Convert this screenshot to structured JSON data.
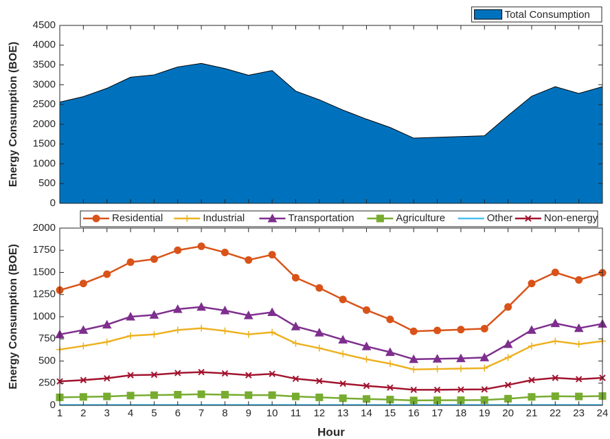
{
  "chart_data": [
    {
      "type": "area",
      "ylabel": "Energy Consumption (BOE)",
      "x": [
        1,
        2,
        3,
        4,
        5,
        6,
        7,
        8,
        9,
        10,
        11,
        12,
        13,
        14,
        15,
        16,
        17,
        18,
        19,
        20,
        21,
        22,
        23,
        24
      ],
      "series": [
        {
          "name": "Total Consumption",
          "color": "#0072BD",
          "values": [
            2560,
            2700,
            2910,
            3190,
            3250,
            3450,
            3540,
            3410,
            3240,
            3360,
            2840,
            2620,
            2360,
            2130,
            1920,
            1650,
            1670,
            1690,
            1710,
            2220,
            2710,
            2950,
            2780,
            2950
          ]
        }
      ],
      "xlim": [
        1,
        24
      ],
      "xticks": [
        1,
        2,
        3,
        4,
        5,
        6,
        7,
        8,
        9,
        10,
        11,
        12,
        13,
        14,
        15,
        16,
        17,
        18,
        19,
        20,
        21,
        22,
        23,
        24
      ],
      "ylim": [
        0,
        4500
      ],
      "yticks": [
        0,
        500,
        1000,
        1500,
        2000,
        2500,
        3000,
        3500,
        4000,
        4500
      ],
      "legend": "northeast"
    },
    {
      "type": "line",
      "ylabel": "Energy Consumption (BOE)",
      "xlabel": "Hour",
      "x": [
        1,
        2,
        3,
        4,
        5,
        6,
        7,
        8,
        9,
        10,
        11,
        12,
        13,
        14,
        15,
        16,
        17,
        18,
        19,
        20,
        21,
        22,
        23,
        24
      ],
      "series": [
        {
          "name": "Residential",
          "color": "#D95319",
          "marker": "circle",
          "values": [
            1300,
            1375,
            1480,
            1615,
            1650,
            1750,
            1795,
            1725,
            1640,
            1700,
            1440,
            1325,
            1195,
            1075,
            970,
            835,
            845,
            855,
            865,
            1110,
            1375,
            1500,
            1415,
            1495
          ]
        },
        {
          "name": "Industrial",
          "color": "#EDB120",
          "marker": "plus",
          "values": [
            630,
            670,
            715,
            785,
            800,
            850,
            870,
            840,
            800,
            825,
            700,
            645,
            580,
            520,
            470,
            405,
            410,
            415,
            420,
            540,
            670,
            725,
            690,
            725
          ]
        },
        {
          "name": "Transportation",
          "color": "#7E2F8E",
          "marker": "triangle",
          "values": [
            800,
            850,
            910,
            1000,
            1020,
            1085,
            1110,
            1070,
            1015,
            1050,
            890,
            820,
            740,
            665,
            600,
            520,
            525,
            530,
            540,
            690,
            850,
            925,
            870,
            920
          ]
        },
        {
          "name": "Agriculture",
          "color": "#77AC30",
          "marker": "square",
          "values": [
            90,
            95,
            100,
            110,
            115,
            120,
            125,
            120,
            115,
            115,
            100,
            90,
            80,
            72,
            65,
            55,
            57,
            58,
            60,
            75,
            95,
            103,
            100,
            105
          ]
        },
        {
          "name": "Other",
          "color": "#4DBEEE",
          "marker": "none",
          "values": [
            5,
            5,
            5,
            5,
            5,
            5,
            5,
            5,
            5,
            5,
            5,
            5,
            5,
            5,
            5,
            5,
            5,
            5,
            5,
            5,
            5,
            5,
            5,
            5
          ]
        },
        {
          "name": "Non-energy",
          "color": "#A2142F",
          "marker": "x",
          "values": [
            270,
            285,
            305,
            340,
            345,
            365,
            375,
            360,
            340,
            355,
            300,
            275,
            245,
            220,
            200,
            175,
            175,
            178,
            180,
            230,
            285,
            310,
            295,
            310
          ]
        }
      ],
      "xlim": [
        1,
        24
      ],
      "xticks": [
        1,
        2,
        3,
        4,
        5,
        6,
        7,
        8,
        9,
        10,
        11,
        12,
        13,
        14,
        15,
        16,
        17,
        18,
        19,
        20,
        21,
        22,
        23,
        24
      ],
      "ylim": [
        0,
        2000
      ],
      "yticks": [
        0,
        250,
        500,
        750,
        1000,
        1250,
        1500,
        1750,
        2000
      ],
      "legend": "northoutside"
    }
  ]
}
